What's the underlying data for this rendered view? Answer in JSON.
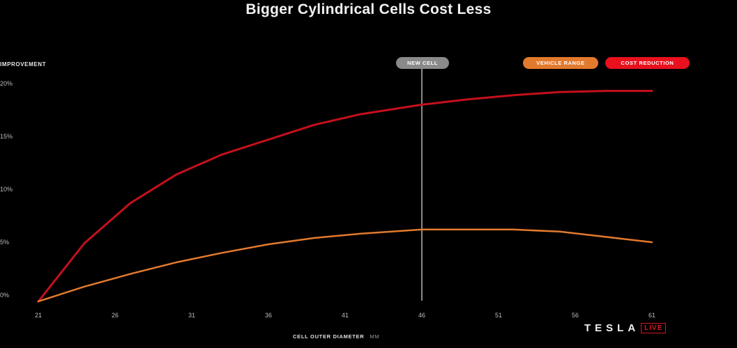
{
  "title": "Bigger Cylindrical Cells Cost Less",
  "legend": {
    "vehicle_range": "VEHICLE RANGE",
    "cost_reduction": "COST REDUCTION",
    "new_cell": "NEW CELL"
  },
  "xaxis": {
    "label": "CELL OUTER DIAMETER",
    "unit": "MM"
  },
  "brand": {
    "name": "TESLA",
    "badge": "LIVE"
  },
  "colors": {
    "cost_reduction": "#c4101c",
    "vehicle_range": "#e27a2d",
    "new_cell": "#8a8a8a",
    "background": "#000000"
  },
  "chart_data": {
    "type": "line",
    "title": "Bigger Cylindrical Cells Cost Less",
    "xlabel": "CELL OUTER DIAMETER (MM)",
    "ylabel": "IMPROVEMENT",
    "xlim": [
      21,
      61
    ],
    "ylim": [
      0,
      20
    ],
    "x_ticks": [
      "21",
      "26",
      "31",
      "36",
      "41",
      "46",
      "51",
      "56",
      "61"
    ],
    "y_ticks": [
      "0%",
      "5%",
      "10%",
      "15%",
      "20%"
    ],
    "grid": false,
    "legend_position": "top-right",
    "annotations": [
      {
        "label": "NEW CELL",
        "x": 46
      }
    ],
    "series": [
      {
        "name": "COST REDUCTION",
        "x": [
          21,
          24,
          27,
          30,
          33,
          36,
          39,
          42,
          46,
          49,
          52,
          55,
          58,
          61
        ],
        "values": [
          -0.6,
          4.9,
          8.7,
          11.4,
          13.3,
          14.7,
          16.1,
          17.1,
          18.0,
          18.5,
          18.9,
          19.2,
          19.3,
          19.3
        ]
      },
      {
        "name": "VEHICLE RANGE",
        "x": [
          21,
          24,
          27,
          30,
          33,
          36,
          39,
          42,
          46,
          49,
          52,
          55,
          58,
          61
        ],
        "values": [
          -0.6,
          0.8,
          2.0,
          3.1,
          4.0,
          4.8,
          5.4,
          5.8,
          6.2,
          6.2,
          6.2,
          6.0,
          5.5,
          5.0
        ]
      }
    ]
  }
}
